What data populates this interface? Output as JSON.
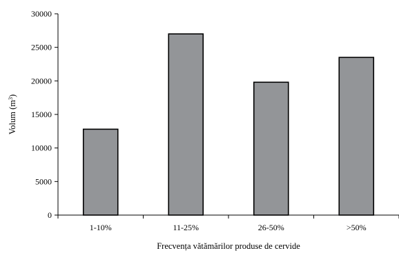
{
  "chart_data": {
    "type": "bar",
    "categories": [
      "1-10%",
      "11-25%",
      "26-50%",
      ">50%"
    ],
    "values": [
      12800,
      27000,
      19800,
      23500
    ],
    "yticks": [
      0,
      5000,
      10000,
      15000,
      20000,
      25000,
      30000
    ],
    "ylim": [
      0,
      30000
    ],
    "xlabel": "Frecvența vătămărilor produse de cervide",
    "ylabel_main": "Volum (m",
    "ylabel_sup": "3",
    "ylabel_end": ")",
    "grid": false,
    "legend": "none",
    "bar_color": "#939598"
  }
}
